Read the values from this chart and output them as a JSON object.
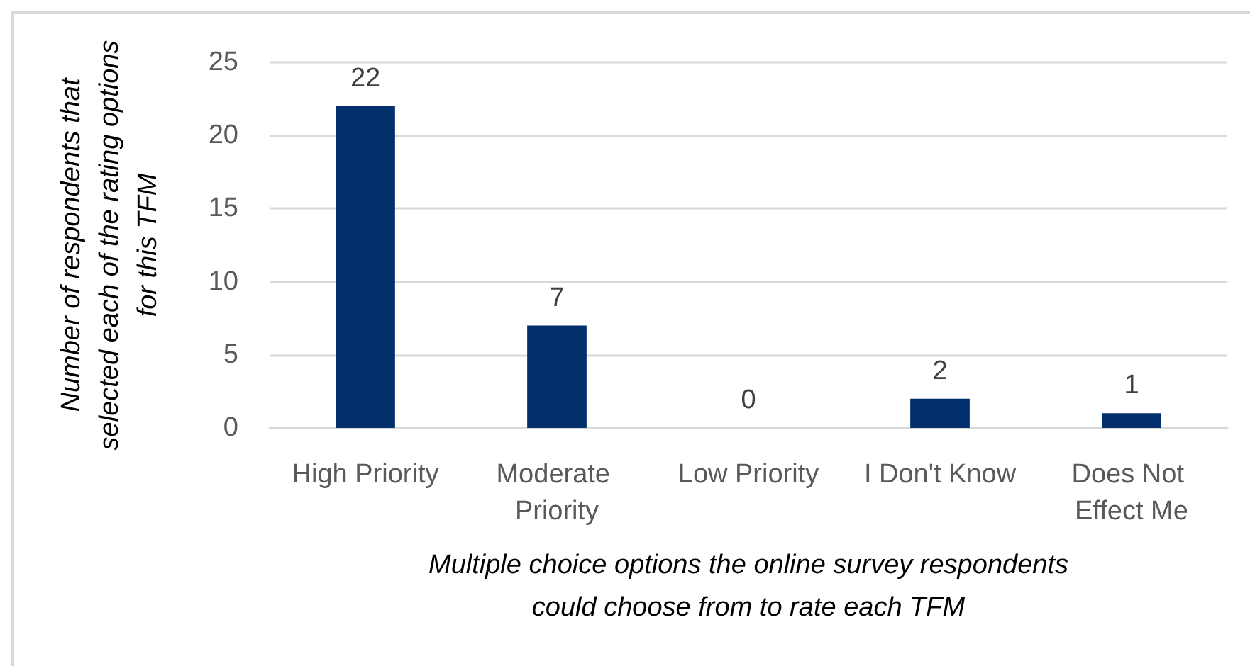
{
  "chart_data": {
    "type": "bar",
    "xlabel": "Multiple choice options the online survey respondents could choose from to rate each TFM",
    "ylabel": "Number of respondents that selected each of the rating options for this TFM",
    "categories": [
      "High Priority",
      "Moderate Priority",
      "Low Priority",
      "I Don't Know",
      "Does Not Effect Me"
    ],
    "values": [
      22,
      7,
      0,
      2,
      1
    ],
    "color": "#002f6c",
    "ylim": [
      0,
      25
    ],
    "yticks": [
      0,
      5,
      10,
      15,
      20,
      25
    ],
    "grid": "y",
    "data_labels": true
  }
}
